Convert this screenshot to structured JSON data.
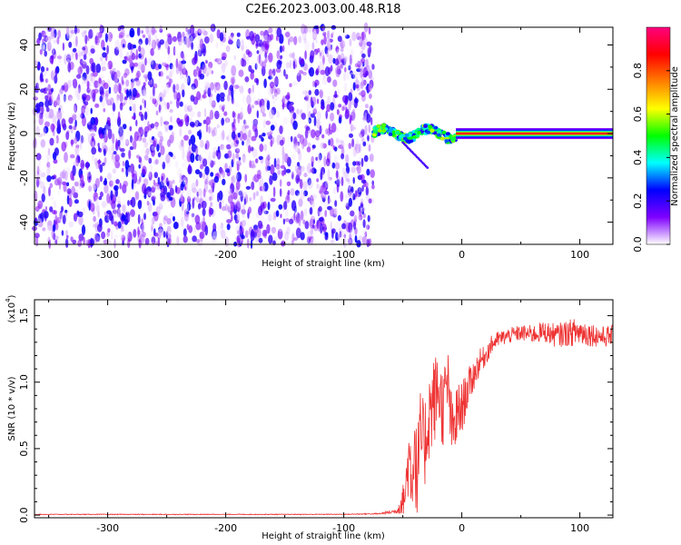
{
  "chart_data": [
    {
      "type": "heatmap",
      "title": "C2E6.2023.003.00.48.R18",
      "xlabel": "Height of straight line (km)",
      "ylabel": "Frequency (Hz)",
      "xlim": [
        -362,
        128
      ],
      "ylim": [
        -50,
        48
      ],
      "xticks": [
        -300,
        -200,
        -100,
        0,
        100
      ],
      "yticks": [
        -40,
        -20,
        0,
        20,
        40
      ],
      "regions": [
        {
          "description": "broadband low-amplitude speckle",
          "x": [
            -362,
            -75
          ],
          "freq": [
            -50,
            48
          ],
          "amplitude": [
            0.0,
            0.25
          ]
        },
        {
          "description": "emerging narrowband signal with oscillation",
          "x": [
            -75,
            -5
          ],
          "freq": [
            -5,
            5
          ],
          "amplitude": [
            0.2,
            0.6
          ]
        },
        {
          "description": "steady narrowband tone",
          "x": [
            -5,
            128
          ],
          "freq": [
            0,
            0
          ],
          "amplitude": [
            0.6,
            1.0
          ]
        }
      ],
      "colorbar": {
        "label": "Normalized spectral amplitude",
        "range": [
          0.0,
          1.0
        ],
        "ticks": [
          "0.0",
          "0.2",
          "0.4",
          "0.6",
          "0.8"
        ],
        "colors": [
          "#ffffff",
          "#7f00ff",
          "#0000ff",
          "#00ffff",
          "#00ff00",
          "#ffff00",
          "#ff7f00",
          "#ff0000",
          "#ff007f"
        ]
      }
    },
    {
      "type": "line",
      "title": "",
      "xlabel": "Height of straight line (km)",
      "ylabel": "SNR (10 * v/v)",
      "scale_label": "(x10",
      "scale_exp": "4",
      "scale_close": ")",
      "xlim": [
        -362,
        128
      ],
      "ylim": [
        -0.02,
        1.62
      ],
      "xticks": [
        -300,
        -200,
        -100,
        0,
        100
      ],
      "yticks": [
        "0.0",
        "0.5",
        "1.0",
        "1.5"
      ],
      "color": "#ee3333",
      "x": [
        -362,
        -300,
        -250,
        -200,
        -150,
        -100,
        -70,
        -55,
        -48,
        -45,
        -42,
        -40,
        -38,
        -35,
        -32,
        -28,
        -24,
        -20,
        -16,
        -12,
        -8,
        -4,
        0,
        5,
        10,
        15,
        20,
        25,
        30,
        40,
        50,
        60,
        70,
        80,
        90,
        100,
        110,
        120,
        128
      ],
      "y": [
        0.005,
        0.005,
        0.005,
        0.005,
        0.005,
        0.006,
        0.01,
        0.03,
        0.15,
        0.45,
        0.3,
        0.55,
        0.25,
        0.6,
        0.5,
        0.75,
        0.85,
        0.95,
        0.8,
        1.0,
        0.6,
        0.75,
        0.8,
        0.95,
        1.05,
        1.15,
        1.2,
        1.28,
        1.32,
        1.35,
        1.37,
        1.36,
        1.38,
        1.35,
        1.37,
        1.38,
        1.36,
        1.34,
        1.35
      ],
      "noise_amplitude": [
        0.003,
        0.003,
        0.003,
        0.003,
        0.003,
        0.003,
        0.005,
        0.02,
        0.15,
        0.3,
        0.3,
        0.35,
        0.35,
        0.35,
        0.35,
        0.35,
        0.35,
        0.3,
        0.3,
        0.28,
        0.25,
        0.25,
        0.2,
        0.15,
        0.12,
        0.1,
        0.08,
        0.07,
        0.06,
        0.06,
        0.06,
        0.07,
        0.08,
        0.09,
        0.1,
        0.11,
        0.09,
        0.08,
        0.08
      ]
    }
  ]
}
